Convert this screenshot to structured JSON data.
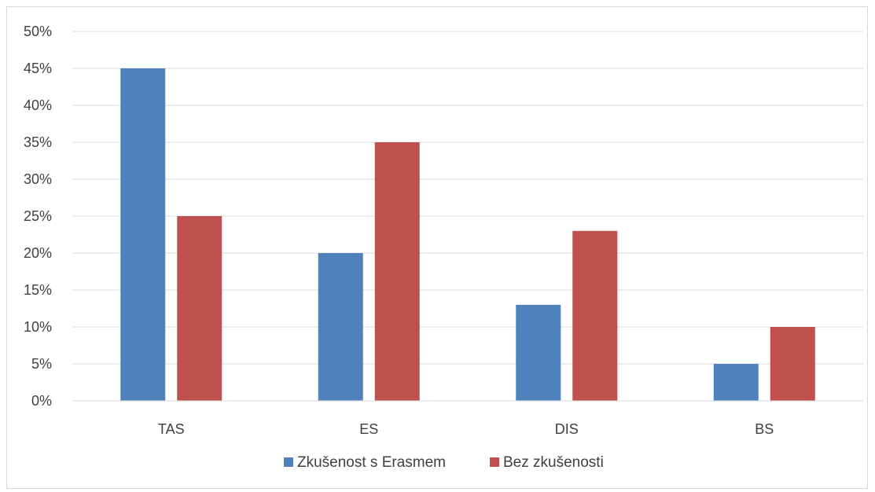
{
  "chart_data": {
    "type": "bar",
    "categories": [
      "TAS",
      "ES",
      "DIS",
      "BS"
    ],
    "series": [
      {
        "name": "Zkušenost s Erasmem",
        "values": [
          45,
          20,
          13,
          5
        ],
        "color": "#4F81BD"
      },
      {
        "name": "Bez zkušenosti",
        "values": [
          25,
          35,
          23,
          10
        ],
        "color": "#C0504D"
      }
    ],
    "y_ticks": [
      "0%",
      "5%",
      "10%",
      "15%",
      "20%",
      "25%",
      "30%",
      "35%",
      "40%",
      "45%",
      "50%"
    ],
    "ylim": [
      0,
      50
    ],
    "y_unit": "%",
    "grid": true,
    "gridline_color": "#d9d9d9",
    "legend_position": "bottom",
    "title": "",
    "xlabel": "",
    "ylabel": ""
  }
}
